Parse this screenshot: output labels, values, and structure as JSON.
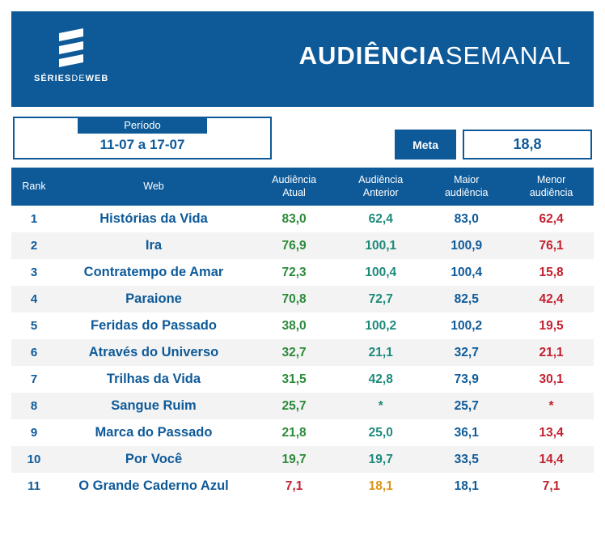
{
  "brand": {
    "left": "SÉRIES",
    "mid": "DE",
    "right": "WEB"
  },
  "title": {
    "bold": "AUDIÊNCIA",
    "light": "SEMANAL"
  },
  "periodo": {
    "label": "Período",
    "value": "11-07 a 17-07"
  },
  "meta": {
    "label": "Meta",
    "value": "18,8"
  },
  "columns": {
    "rank": "Rank",
    "web": "Web",
    "atual": "Audiência\nAtual",
    "anterior": "Audiência\nAnterior",
    "maior": "Maior\naudiência",
    "menor": "Menor\naudiência"
  },
  "colors": {
    "primary": "#0e5a99",
    "row_alt": "#f3f3f3",
    "green": "#2c8a3b",
    "teal": "#1c8a7b",
    "blue": "#0e5a99",
    "red": "#c3202e",
    "amber": "#d9941a",
    "white": "#ffffff"
  },
  "rows": [
    {
      "rank": "1",
      "name": "Histórias da Vida",
      "atual": {
        "v": "83,0",
        "c": "green"
      },
      "anterior": {
        "v": "62,4",
        "c": "teal"
      },
      "maior": {
        "v": "83,0",
        "c": "blue"
      },
      "menor": {
        "v": "62,4",
        "c": "red"
      }
    },
    {
      "rank": "2",
      "name": "Ira",
      "atual": {
        "v": "76,9",
        "c": "green"
      },
      "anterior": {
        "v": "100,1",
        "c": "teal"
      },
      "maior": {
        "v": "100,9",
        "c": "blue"
      },
      "menor": {
        "v": "76,1",
        "c": "red"
      }
    },
    {
      "rank": "3",
      "name": "Contratempo de Amar",
      "atual": {
        "v": "72,3",
        "c": "green"
      },
      "anterior": {
        "v": "100,4",
        "c": "teal"
      },
      "maior": {
        "v": "100,4",
        "c": "blue"
      },
      "menor": {
        "v": "15,8",
        "c": "red"
      }
    },
    {
      "rank": "4",
      "name": "Paraione",
      "atual": {
        "v": "70,8",
        "c": "green"
      },
      "anterior": {
        "v": "72,7",
        "c": "teal"
      },
      "maior": {
        "v": "82,5",
        "c": "blue"
      },
      "menor": {
        "v": "42,4",
        "c": "red"
      }
    },
    {
      "rank": "5",
      "name": "Feridas do Passado",
      "atual": {
        "v": "38,0",
        "c": "green"
      },
      "anterior": {
        "v": "100,2",
        "c": "teal"
      },
      "maior": {
        "v": "100,2",
        "c": "blue"
      },
      "menor": {
        "v": "19,5",
        "c": "red"
      }
    },
    {
      "rank": "6",
      "name": "Através do Universo",
      "atual": {
        "v": "32,7",
        "c": "green"
      },
      "anterior": {
        "v": "21,1",
        "c": "teal"
      },
      "maior": {
        "v": "32,7",
        "c": "blue"
      },
      "menor": {
        "v": "21,1",
        "c": "red"
      }
    },
    {
      "rank": "7",
      "name": "Trilhas da Vida",
      "atual": {
        "v": "31,5",
        "c": "green"
      },
      "anterior": {
        "v": "42,8",
        "c": "teal"
      },
      "maior": {
        "v": "73,9",
        "c": "blue"
      },
      "menor": {
        "v": "30,1",
        "c": "red"
      }
    },
    {
      "rank": "8",
      "name": "Sangue Ruim",
      "atual": {
        "v": "25,7",
        "c": "green"
      },
      "anterior": {
        "v": "*",
        "c": "teal"
      },
      "maior": {
        "v": "25,7",
        "c": "blue"
      },
      "menor": {
        "v": "*",
        "c": "red"
      }
    },
    {
      "rank": "9",
      "name": "Marca do Passado",
      "atual": {
        "v": "21,8",
        "c": "green"
      },
      "anterior": {
        "v": "25,0",
        "c": "teal"
      },
      "maior": {
        "v": "36,1",
        "c": "blue"
      },
      "menor": {
        "v": "13,4",
        "c": "red"
      }
    },
    {
      "rank": "10",
      "name": "Por Você",
      "atual": {
        "v": "19,7",
        "c": "green"
      },
      "anterior": {
        "v": "19,7",
        "c": "teal"
      },
      "maior": {
        "v": "33,5",
        "c": "blue"
      },
      "menor": {
        "v": "14,4",
        "c": "red"
      }
    },
    {
      "rank": "11",
      "name": "O Grande Caderno Azul",
      "atual": {
        "v": "7,1",
        "c": "red"
      },
      "anterior": {
        "v": "18,1",
        "c": "amber"
      },
      "maior": {
        "v": "18,1",
        "c": "blue"
      },
      "menor": {
        "v": "7,1",
        "c": "red"
      }
    }
  ]
}
